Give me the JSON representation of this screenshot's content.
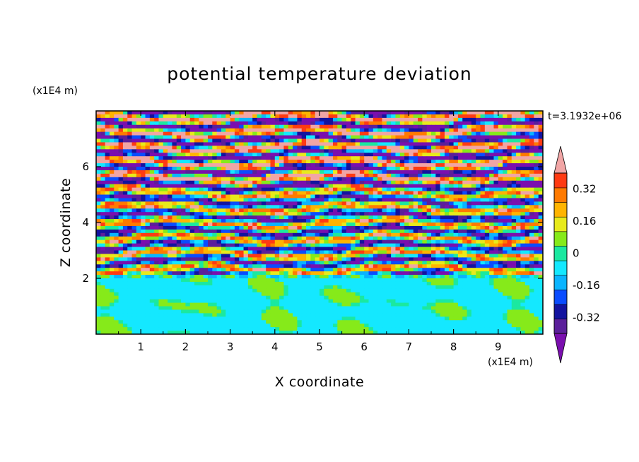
{
  "chart_data": {
    "type": "heatmap",
    "title": "potential temperature deviation",
    "xlabel": "X coordinate",
    "ylabel": "Z coordinate",
    "x_unit": "(x1E4 m)",
    "y_unit": "(x1E4 m)",
    "time_label": "t=3.1932e+06",
    "xlim": [
      0,
      10
    ],
    "ylim": [
      0,
      8
    ],
    "x_ticks": [
      "1",
      "2",
      "3",
      "4",
      "5",
      "6",
      "7",
      "8",
      "9"
    ],
    "y_ticks": [
      "2",
      "4",
      "6"
    ],
    "colorbar": {
      "levels": [
        -0.48,
        -0.4,
        -0.32,
        -0.24,
        -0.16,
        -0.08,
        0,
        0.08,
        0.16,
        0.24,
        0.32,
        0.4,
        0.48
      ],
      "labels": [
        "0.32",
        "0.16",
        "0",
        "-0.16",
        "-0.32"
      ],
      "label_values": [
        0.32,
        0.16,
        0,
        -0.16,
        -0.32
      ],
      "colors": [
        "#7a0fae",
        "#5b1f9a",
        "#13139f",
        "#0a4cff",
        "#0ab4ff",
        "#14e8ff",
        "#1be8a0",
        "#86ea1a",
        "#e8ea1c",
        "#ffb400",
        "#ff7a00",
        "#ff3a12",
        "#f1a5a5"
      ],
      "under_color": "#7a0fae",
      "over_color": "#f1a5a5"
    },
    "description_of_field": "horizontally stratified layered bands above z=2 (alternating purple / pink / red-yellow-blue), near-zero green field with mixing eddies below z=2"
  }
}
